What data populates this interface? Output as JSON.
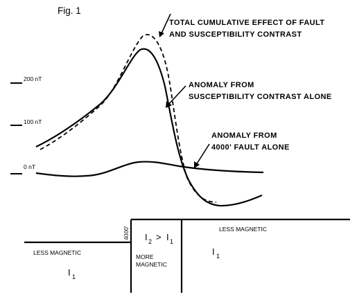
{
  "figure": {
    "label": "Fig. 1"
  },
  "axis": {
    "ticks": [
      {
        "label": "200 nT",
        "value": 200
      },
      {
        "label": "100 nT",
        "value": 100
      },
      {
        "label": "0 nT",
        "value": 0
      }
    ]
  },
  "annotations": {
    "total": {
      "line1": "TOTAL CUMULATIVE EFFECT OF FAULT",
      "line2": "AND SUSCEPTIBILITY CONTRAST"
    },
    "susceptibility": {
      "line1": "ANOMALY FROM",
      "line2": "SUSCEPTIBILITY CONTRAST ALONE"
    },
    "fault": {
      "line1": "ANOMALY FROM",
      "line2": "4000' FAULT ALONE"
    }
  },
  "cross_section": {
    "fault_throw": "4000'",
    "left_block": {
      "label": "LESS MAGNETIC",
      "symbol": "I",
      "subscript": "1"
    },
    "center_block": {
      "relation": {
        "a": "I",
        "a_sub": "2",
        "op": ">",
        "b": "I",
        "b_sub": "1"
      },
      "label_line1": "MORE",
      "label_line2": "MAGNETIC"
    },
    "right_block": {
      "label": "LESS MAGNETIC",
      "symbol": "I",
      "subscript": "1"
    }
  },
  "colors": {
    "ink": "#000000",
    "background": "#ffffff"
  }
}
